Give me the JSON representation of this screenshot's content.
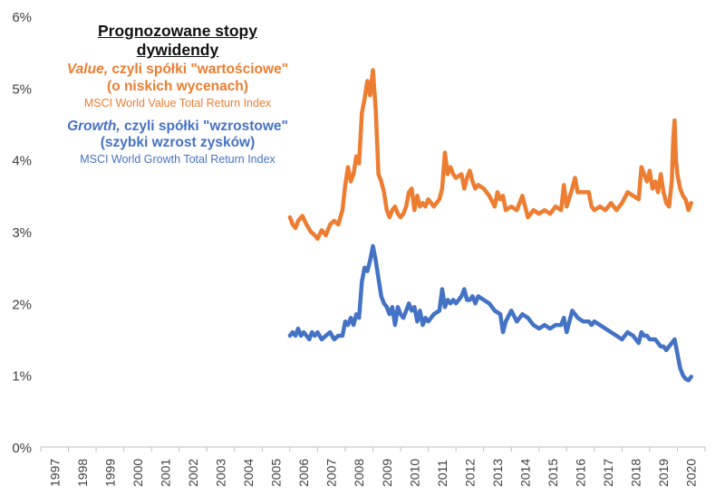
{
  "chart_data": {
    "type": "line",
    "title": "Prognozowane stopy dywidendy",
    "xlabel": "",
    "ylabel": "",
    "ylim": [
      0,
      6
    ],
    "yticks": [
      "0%",
      "1%",
      "2%",
      "3%",
      "4%",
      "5%",
      "6%"
    ],
    "xlim": [
      1997,
      2021
    ],
    "categories": [
      "1997",
      "1998",
      "1999",
      "2000",
      "2001",
      "2002",
      "2003",
      "2004",
      "2005",
      "2006",
      "2007",
      "2008",
      "2009",
      "2010",
      "2011",
      "2012",
      "2013",
      "2014",
      "2015",
      "2016",
      "2017",
      "2018",
      "2019",
      "2020"
    ],
    "series": [
      {
        "name": "Value",
        "label_em": "Value,",
        "label_rest": " czyli spółki \"wartościowe\"",
        "label_line2": "(o niskich wycenach)",
        "index_name": "MSCI World Value Total Return Index",
        "color": "#ED7D31",
        "points": [
          [
            2006.0,
            3.2
          ],
          [
            2006.1,
            3.1
          ],
          [
            2006.2,
            3.05
          ],
          [
            2006.3,
            3.15
          ],
          [
            2006.45,
            3.22
          ],
          [
            2006.6,
            3.1
          ],
          [
            2006.75,
            3.0
          ],
          [
            2006.9,
            2.95
          ],
          [
            2007.0,
            2.9
          ],
          [
            2007.15,
            3.02
          ],
          [
            2007.3,
            2.95
          ],
          [
            2007.45,
            3.1
          ],
          [
            2007.6,
            3.15
          ],
          [
            2007.75,
            3.1
          ],
          [
            2007.9,
            3.3
          ],
          [
            2008.0,
            3.65
          ],
          [
            2008.1,
            3.9
          ],
          [
            2008.2,
            3.7
          ],
          [
            2008.3,
            3.8
          ],
          [
            2008.4,
            4.05
          ],
          [
            2008.5,
            3.95
          ],
          [
            2008.6,
            4.65
          ],
          [
            2008.7,
            4.85
          ],
          [
            2008.8,
            5.1
          ],
          [
            2008.9,
            4.9
          ],
          [
            2009.0,
            5.25
          ],
          [
            2009.1,
            4.7
          ],
          [
            2009.2,
            3.8
          ],
          [
            2009.3,
            3.7
          ],
          [
            2009.4,
            3.55
          ],
          [
            2009.5,
            3.3
          ],
          [
            2009.6,
            3.2
          ],
          [
            2009.7,
            3.3
          ],
          [
            2009.8,
            3.35
          ],
          [
            2009.9,
            3.25
          ],
          [
            2010.0,
            3.2
          ],
          [
            2010.1,
            3.25
          ],
          [
            2010.2,
            3.35
          ],
          [
            2010.3,
            3.55
          ],
          [
            2010.4,
            3.6
          ],
          [
            2010.5,
            3.3
          ],
          [
            2010.6,
            3.5
          ],
          [
            2010.7,
            3.35
          ],
          [
            2010.8,
            3.4
          ],
          [
            2010.9,
            3.35
          ],
          [
            2011.0,
            3.45
          ],
          [
            2011.2,
            3.35
          ],
          [
            2011.4,
            3.45
          ],
          [
            2011.5,
            3.6
          ],
          [
            2011.6,
            4.1
          ],
          [
            2011.7,
            3.8
          ],
          [
            2011.8,
            3.9
          ],
          [
            2011.9,
            3.8
          ],
          [
            2012.0,
            3.75
          ],
          [
            2012.2,
            3.8
          ],
          [
            2012.3,
            3.6
          ],
          [
            2012.4,
            3.75
          ],
          [
            2012.5,
            3.85
          ],
          [
            2012.6,
            3.7
          ],
          [
            2012.7,
            3.6
          ],
          [
            2012.8,
            3.65
          ],
          [
            2013.0,
            3.6
          ],
          [
            2013.2,
            3.5
          ],
          [
            2013.4,
            3.35
          ],
          [
            2013.5,
            3.55
          ],
          [
            2013.6,
            3.45
          ],
          [
            2013.7,
            3.5
          ],
          [
            2013.8,
            3.3
          ],
          [
            2014.0,
            3.35
          ],
          [
            2014.2,
            3.3
          ],
          [
            2014.4,
            3.5
          ],
          [
            2014.6,
            3.2
          ],
          [
            2014.8,
            3.3
          ],
          [
            2015.0,
            3.25
          ],
          [
            2015.2,
            3.3
          ],
          [
            2015.4,
            3.25
          ],
          [
            2015.6,
            3.35
          ],
          [
            2015.8,
            3.3
          ],
          [
            2015.9,
            3.65
          ],
          [
            2016.0,
            3.35
          ],
          [
            2016.2,
            3.6
          ],
          [
            2016.3,
            3.75
          ],
          [
            2016.4,
            3.55
          ],
          [
            2016.6,
            3.55
          ],
          [
            2016.8,
            3.55
          ],
          [
            2016.9,
            3.35
          ],
          [
            2017.0,
            3.3
          ],
          [
            2017.2,
            3.35
          ],
          [
            2017.4,
            3.3
          ],
          [
            2017.6,
            3.4
          ],
          [
            2017.8,
            3.3
          ],
          [
            2018.0,
            3.4
          ],
          [
            2018.2,
            3.55
          ],
          [
            2018.4,
            3.5
          ],
          [
            2018.6,
            3.45
          ],
          [
            2018.7,
            3.9
          ],
          [
            2018.8,
            3.8
          ],
          [
            2018.9,
            3.7
          ],
          [
            2019.0,
            3.85
          ],
          [
            2019.1,
            3.6
          ],
          [
            2019.2,
            3.7
          ],
          [
            2019.3,
            3.55
          ],
          [
            2019.4,
            3.8
          ],
          [
            2019.5,
            3.55
          ],
          [
            2019.6,
            3.4
          ],
          [
            2019.7,
            3.35
          ],
          [
            2019.8,
            3.7
          ],
          [
            2019.85,
            4.3
          ],
          [
            2019.9,
            4.55
          ],
          [
            2019.95,
            4.0
          ],
          [
            2020.0,
            3.8
          ],
          [
            2020.1,
            3.6
          ],
          [
            2020.2,
            3.5
          ],
          [
            2020.3,
            3.45
          ],
          [
            2020.4,
            3.3
          ],
          [
            2020.5,
            3.4
          ]
        ]
      },
      {
        "name": "Growth",
        "label_em": "Growth,",
        "label_rest": " czyli spółki \"wzrostowe\"",
        "label_line2": "(szybki wzrost zysków)",
        "index_name": "MSCI World Growth Total Return Index",
        "color": "#4472C4",
        "points": [
          [
            2006.0,
            1.55
          ],
          [
            2006.1,
            1.6
          ],
          [
            2006.2,
            1.55
          ],
          [
            2006.3,
            1.65
          ],
          [
            2006.4,
            1.55
          ],
          [
            2006.5,
            1.6
          ],
          [
            2006.6,
            1.55
          ],
          [
            2006.7,
            1.5
          ],
          [
            2006.8,
            1.6
          ],
          [
            2006.9,
            1.55
          ],
          [
            2007.0,
            1.6
          ],
          [
            2007.15,
            1.5
          ],
          [
            2007.3,
            1.55
          ],
          [
            2007.45,
            1.6
          ],
          [
            2007.6,
            1.5
          ],
          [
            2007.75,
            1.55
          ],
          [
            2007.9,
            1.55
          ],
          [
            2008.0,
            1.75
          ],
          [
            2008.1,
            1.7
          ],
          [
            2008.2,
            1.8
          ],
          [
            2008.3,
            1.7
          ],
          [
            2008.4,
            1.85
          ],
          [
            2008.5,
            1.8
          ],
          [
            2008.6,
            2.3
          ],
          [
            2008.7,
            2.5
          ],
          [
            2008.8,
            2.45
          ],
          [
            2008.9,
            2.6
          ],
          [
            2009.0,
            2.8
          ],
          [
            2009.1,
            2.6
          ],
          [
            2009.2,
            2.35
          ],
          [
            2009.3,
            2.1
          ],
          [
            2009.4,
            2.0
          ],
          [
            2009.5,
            1.95
          ],
          [
            2009.6,
            1.85
          ],
          [
            2009.7,
            1.95
          ],
          [
            2009.8,
            1.7
          ],
          [
            2009.9,
            1.95
          ],
          [
            2010.0,
            1.85
          ],
          [
            2010.1,
            1.8
          ],
          [
            2010.2,
            1.9
          ],
          [
            2010.3,
            2.0
          ],
          [
            2010.4,
            1.9
          ],
          [
            2010.5,
            1.95
          ],
          [
            2010.6,
            1.75
          ],
          [
            2010.7,
            1.9
          ],
          [
            2010.8,
            1.7
          ],
          [
            2010.9,
            1.8
          ],
          [
            2011.0,
            1.75
          ],
          [
            2011.2,
            1.85
          ],
          [
            2011.4,
            1.9
          ],
          [
            2011.5,
            2.2
          ],
          [
            2011.6,
            1.95
          ],
          [
            2011.7,
            2.05
          ],
          [
            2011.8,
            2.0
          ],
          [
            2011.9,
            2.05
          ],
          [
            2012.0,
            2.0
          ],
          [
            2012.2,
            2.1
          ],
          [
            2012.3,
            2.2
          ],
          [
            2012.4,
            2.05
          ],
          [
            2012.5,
            2.05
          ],
          [
            2012.6,
            2.1
          ],
          [
            2012.7,
            2.0
          ],
          [
            2012.8,
            2.1
          ],
          [
            2013.0,
            2.05
          ],
          [
            2013.2,
            2.0
          ],
          [
            2013.4,
            1.9
          ],
          [
            2013.6,
            1.85
          ],
          [
            2013.7,
            1.6
          ],
          [
            2013.8,
            1.75
          ],
          [
            2014.0,
            1.9
          ],
          [
            2014.2,
            1.75
          ],
          [
            2014.4,
            1.85
          ],
          [
            2014.6,
            1.8
          ],
          [
            2014.8,
            1.7
          ],
          [
            2015.0,
            1.65
          ],
          [
            2015.2,
            1.7
          ],
          [
            2015.4,
            1.65
          ],
          [
            2015.6,
            1.7
          ],
          [
            2015.8,
            1.7
          ],
          [
            2015.9,
            1.8
          ],
          [
            2016.0,
            1.6
          ],
          [
            2016.2,
            1.9
          ],
          [
            2016.3,
            1.85
          ],
          [
            2016.4,
            1.8
          ],
          [
            2016.6,
            1.75
          ],
          [
            2016.8,
            1.75
          ],
          [
            2016.9,
            1.7
          ],
          [
            2017.0,
            1.75
          ],
          [
            2017.2,
            1.7
          ],
          [
            2017.4,
            1.65
          ],
          [
            2017.6,
            1.6
          ],
          [
            2017.8,
            1.55
          ],
          [
            2018.0,
            1.5
          ],
          [
            2018.2,
            1.6
          ],
          [
            2018.4,
            1.55
          ],
          [
            2018.6,
            1.45
          ],
          [
            2018.7,
            1.6
          ],
          [
            2018.8,
            1.55
          ],
          [
            2018.9,
            1.55
          ],
          [
            2019.0,
            1.5
          ],
          [
            2019.2,
            1.5
          ],
          [
            2019.4,
            1.4
          ],
          [
            2019.5,
            1.4
          ],
          [
            2019.6,
            1.35
          ],
          [
            2019.8,
            1.45
          ],
          [
            2019.9,
            1.5
          ],
          [
            2020.0,
            1.3
          ],
          [
            2020.1,
            1.1
          ],
          [
            2020.2,
            1.0
          ],
          [
            2020.3,
            0.95
          ],
          [
            2020.4,
            0.93
          ],
          [
            2020.5,
            0.98
          ]
        ]
      }
    ]
  }
}
